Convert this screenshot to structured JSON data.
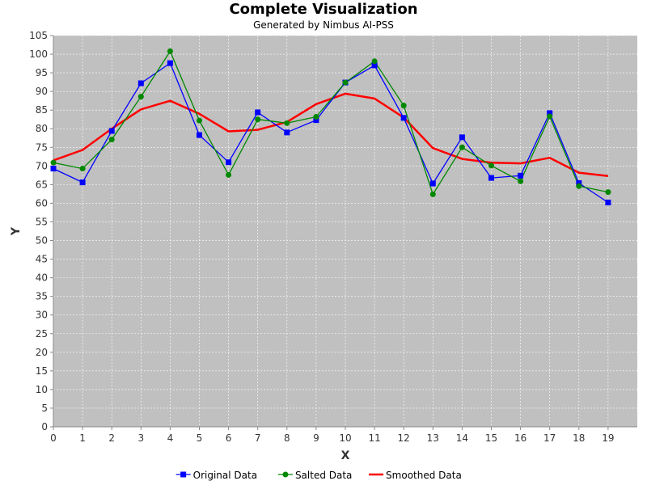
{
  "chart_data": {
    "type": "line",
    "title": "Complete Visualization",
    "subtitle": "Generated by Nimbus AI-PSS",
    "xlabel": "X",
    "ylabel": "Y",
    "xlim": [
      0,
      20
    ],
    "ylim": [
      0,
      105
    ],
    "x_ticks": [
      0,
      1,
      2,
      3,
      4,
      5,
      6,
      7,
      8,
      9,
      10,
      11,
      12,
      13,
      14,
      15,
      16,
      17,
      18,
      19
    ],
    "y_ticks": [
      0,
      5,
      10,
      15,
      20,
      25,
      30,
      35,
      40,
      45,
      50,
      55,
      60,
      65,
      70,
      75,
      80,
      85,
      90,
      95,
      100,
      105
    ],
    "grid": true,
    "plot_background": "#c0c0c0",
    "legend_position": "bottom",
    "x": [
      0,
      1,
      2,
      3,
      4,
      5,
      6,
      7,
      8,
      9,
      10,
      11,
      12,
      13,
      14,
      15,
      16,
      17,
      18,
      19
    ],
    "series": [
      {
        "name": "Original Data",
        "color": "#0000ff",
        "marker": "square",
        "values": [
          69.3,
          65.6,
          79.4,
          92.2,
          97.6,
          78.3,
          71.0,
          84.4,
          79.0,
          82.3,
          92.4,
          97.0,
          82.9,
          65.3,
          77.7,
          66.8,
          67.4,
          84.2,
          65.4,
          60.2
        ]
      },
      {
        "name": "Salted Data",
        "color": "#008800",
        "marker": "circle",
        "values": [
          70.9,
          69.3,
          77.1,
          88.6,
          100.8,
          82.2,
          67.6,
          82.5,
          81.5,
          83.2,
          92.4,
          98.1,
          86.2,
          62.4,
          75.0,
          70.1,
          65.9,
          83.3,
          64.6,
          63.0
        ]
      },
      {
        "name": "Smoothed Data",
        "color": "#ff0000",
        "marker": "none",
        "values": [
          71.5,
          74.3,
          80.0,
          85.2,
          87.5,
          84.0,
          79.3,
          79.7,
          81.8,
          86.6,
          89.4,
          88.1,
          83.0,
          74.8,
          71.9,
          70.9,
          70.7,
          72.2,
          68.2,
          67.3
        ]
      }
    ]
  }
}
